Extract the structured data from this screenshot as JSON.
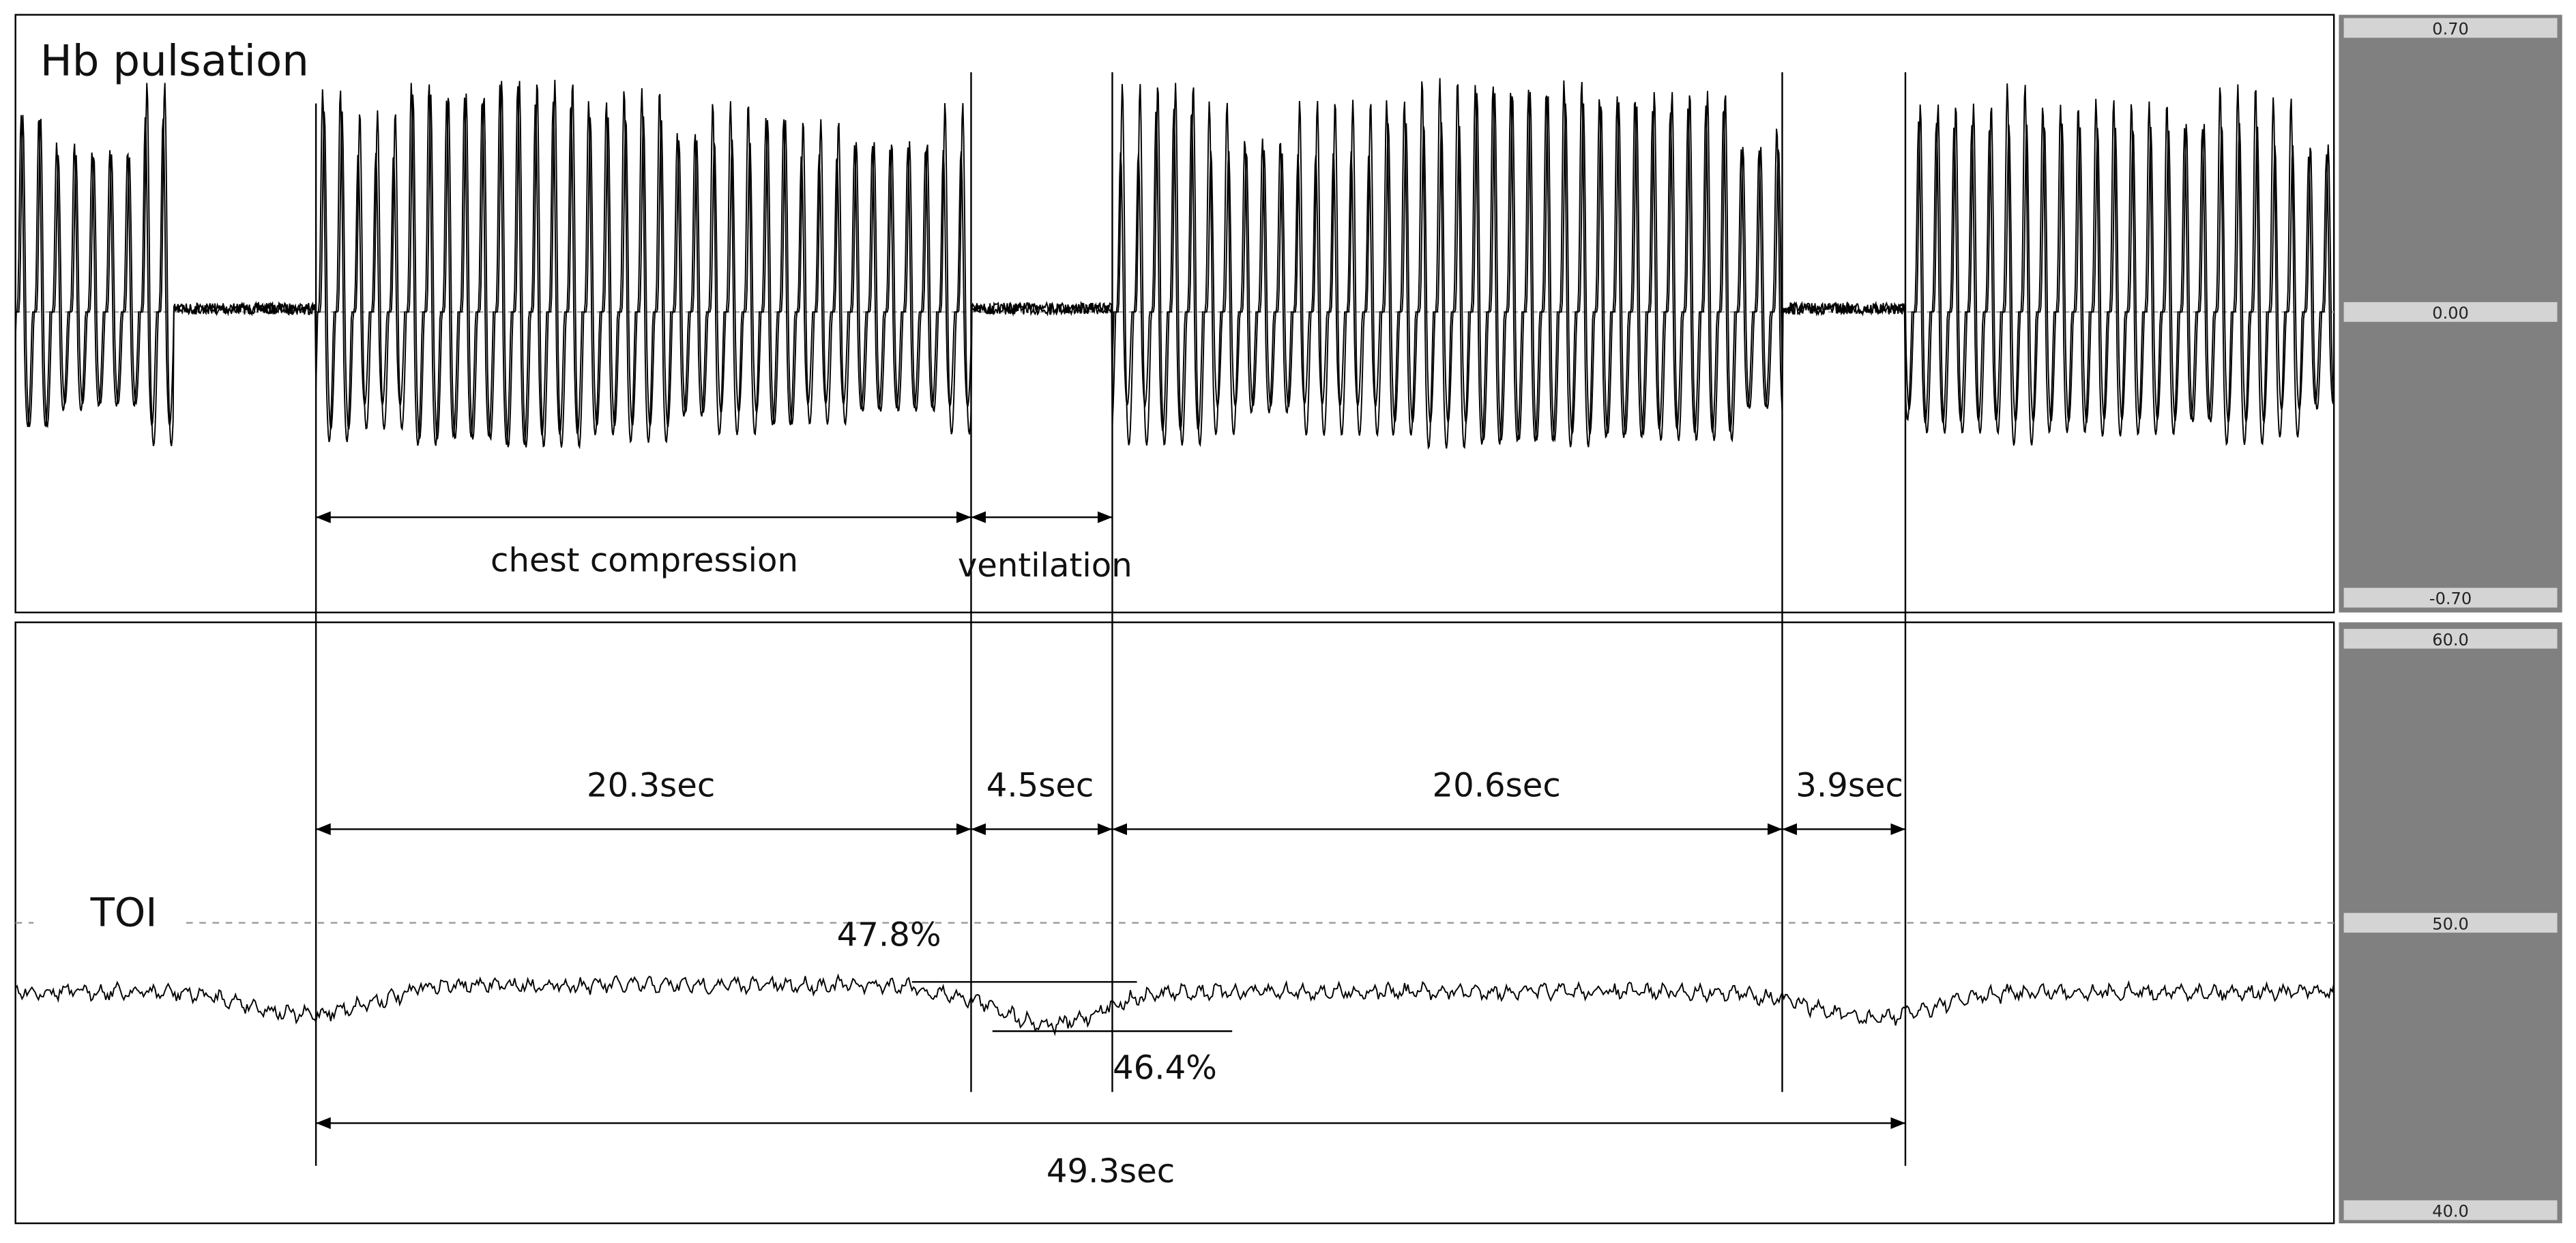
{
  "top_panel": {
    "title": "Hb pulsation",
    "scale": [
      "0.70",
      "0.00",
      "-0.70"
    ],
    "labels": [
      "chest compression",
      "ventilation"
    ]
  },
  "bottom_panel": {
    "title": "TOI",
    "scale": [
      "60.0",
      "50.0",
      "40.0"
    ],
    "durations": [
      "20.3sec",
      "4.5sec",
      "20.6sec",
      "3.9sec"
    ],
    "levels": [
      "47.8%",
      "46.4%"
    ],
    "total": "49.3sec"
  }
}
